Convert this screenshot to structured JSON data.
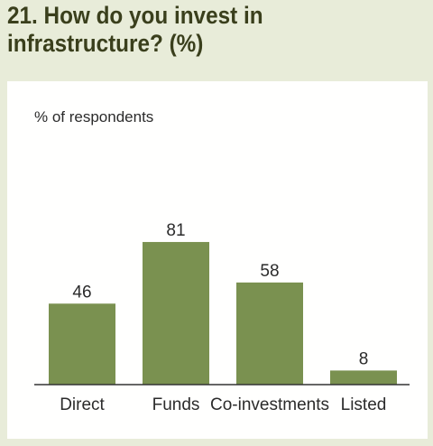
{
  "title": "21. How do you invest in infrastructure? (%)",
  "colors": {
    "background": "#e8ecd9",
    "panel": "#fffffe",
    "bar": "#7a9150",
    "title": "#3a3f1c",
    "text": "#2b2b2b"
  },
  "chart_data": {
    "type": "bar",
    "title": "21. How do you invest in infrastructure? (%)",
    "ylabel": "% of respondents",
    "xlabel": "",
    "categories": [
      "Direct",
      "Funds",
      "Co-investments",
      "Listed"
    ],
    "values": [
      46,
      81,
      58,
      8
    ],
    "ylim": [
      0,
      100
    ],
    "grid": false,
    "data_labels": true
  }
}
